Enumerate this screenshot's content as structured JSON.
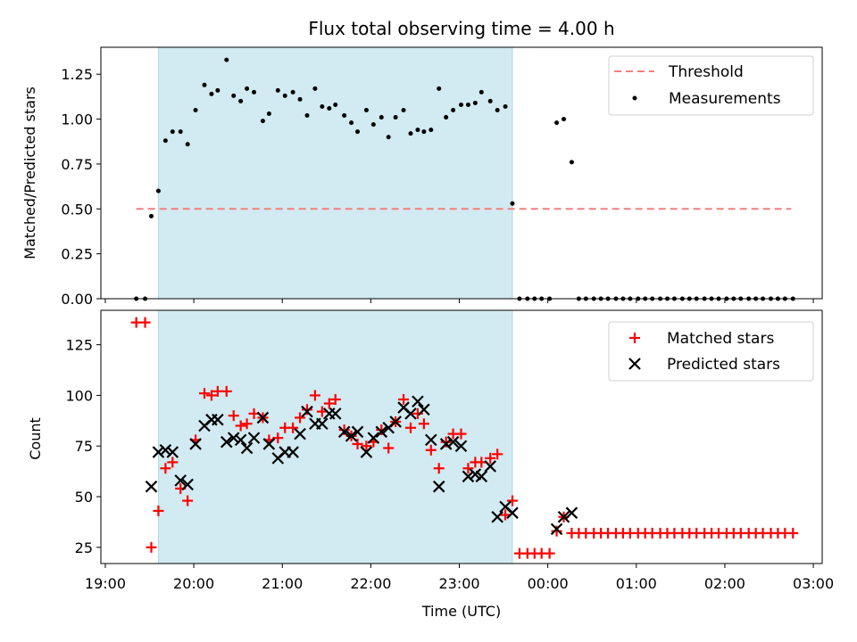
{
  "colors": {
    "shade": "#add8e6",
    "threshold": "#f08080",
    "matched": "#ff0000",
    "predicted": "#000000",
    "measurements": "#000000"
  },
  "chart_data": [
    {
      "type": "scatter",
      "title": "Flux total observing time = 4.00 h",
      "ylabel": "Matched/Predicted stars",
      "xlim": [
        18.95,
        27.1
      ],
      "ylim": [
        0,
        1.4
      ],
      "yticks": [
        0.0,
        0.25,
        0.5,
        0.75,
        1.0,
        1.25
      ],
      "ytick_labels": [
        "0.00",
        "0.25",
        "0.50",
        "0.75",
        "1.00",
        "1.25"
      ],
      "shaded_span": [
        19.6,
        23.6
      ],
      "legend_position": "top-right",
      "threshold": {
        "name": "Threshold",
        "x": [
          19.35,
          26.75
        ],
        "y": 0.5
      },
      "series": [
        {
          "name": "Measurements",
          "x": [
            19.35,
            19.45,
            19.52,
            19.6,
            19.68,
            19.76,
            19.85,
            19.93,
            20.02,
            20.12,
            20.2,
            20.27,
            20.37,
            20.45,
            20.53,
            20.6,
            20.68,
            20.78,
            20.85,
            20.95,
            21.03,
            21.12,
            21.2,
            21.28,
            21.37,
            21.45,
            21.53,
            21.6,
            21.7,
            21.78,
            21.85,
            21.95,
            22.03,
            22.12,
            22.2,
            22.28,
            22.37,
            22.45,
            22.53,
            22.6,
            22.68,
            22.77,
            22.85,
            22.93,
            23.02,
            23.1,
            23.18,
            23.25,
            23.35,
            23.43,
            23.52,
            23.6,
            23.68,
            23.77,
            23.85,
            23.93,
            24.02,
            24.1,
            24.18,
            24.27,
            24.35,
            24.43,
            24.52,
            24.6,
            24.68,
            24.77,
            24.85,
            24.93,
            25.02,
            25.1,
            25.18,
            25.27,
            25.35,
            25.43,
            25.52,
            25.6,
            25.68,
            25.77,
            25.85,
            25.93,
            26.02,
            26.1,
            26.18,
            26.27,
            26.35,
            26.43,
            26.52,
            26.6,
            26.68,
            26.77
          ],
          "y": [
            0.0,
            0.0,
            0.46,
            0.6,
            0.88,
            0.93,
            0.93,
            0.86,
            1.05,
            1.19,
            1.14,
            1.16,
            1.33,
            1.13,
            1.1,
            1.17,
            1.15,
            0.99,
            1.03,
            1.16,
            1.13,
            1.15,
            1.11,
            1.02,
            1.17,
            1.07,
            1.06,
            1.08,
            1.02,
            0.98,
            0.93,
            1.05,
            0.97,
            1.01,
            0.9,
            1.01,
            1.05,
            0.92,
            0.94,
            0.93,
            0.94,
            1.17,
            1.01,
            1.05,
            1.08,
            1.08,
            1.09,
            1.15,
            1.1,
            1.05,
            1.07,
            0.53,
            0.0,
            0.0,
            0.0,
            0.0,
            0.0,
            0.98,
            1.0,
            0.76,
            0.0,
            0.0,
            0.0,
            0.0,
            0.0,
            0.0,
            0.0,
            0.0,
            0.0,
            0.0,
            0.0,
            0.0,
            0.0,
            0.0,
            0.0,
            0.0,
            0.0,
            0.0,
            0.0,
            0.0,
            0.0,
            0.0,
            0.0,
            0.0,
            0.0,
            0.0,
            0.0,
            0.0,
            0.0,
            0.0
          ]
        }
      ]
    },
    {
      "type": "scatter",
      "xlabel": "Time (UTC)",
      "ylabel": "Count",
      "xlim": [
        18.95,
        27.1
      ],
      "ylim": [
        17,
        142
      ],
      "yticks": [
        25,
        50,
        75,
        100,
        125
      ],
      "ytick_labels": [
        "25",
        "50",
        "75",
        "100",
        "125"
      ],
      "xticks": [
        19,
        20,
        21,
        22,
        23,
        24,
        25,
        26,
        27
      ],
      "xtick_labels": [
        "19:00",
        "20:00",
        "21:00",
        "22:00",
        "23:00",
        "00:00",
        "01:00",
        "02:00",
        "03:00"
      ],
      "shaded_span": [
        19.6,
        23.6
      ],
      "legend_position": "top-right",
      "series": [
        {
          "name": "Matched stars",
          "marker": "plus",
          "x": [
            19.35,
            19.45,
            19.52,
            19.6,
            19.68,
            19.76,
            19.85,
            19.93,
            20.02,
            20.12,
            20.2,
            20.27,
            20.37,
            20.45,
            20.53,
            20.6,
            20.68,
            20.78,
            20.85,
            20.95,
            21.03,
            21.12,
            21.2,
            21.28,
            21.37,
            21.45,
            21.53,
            21.6,
            21.7,
            21.78,
            21.85,
            21.95,
            22.03,
            22.12,
            22.2,
            22.28,
            22.37,
            22.45,
            22.53,
            22.6,
            22.68,
            22.77,
            22.85,
            22.93,
            23.02,
            23.1,
            23.18,
            23.25,
            23.35,
            23.43,
            23.52,
            23.6,
            23.68,
            23.77,
            23.85,
            23.93,
            24.02,
            24.1,
            24.18,
            24.27,
            24.35,
            24.43,
            24.52,
            24.6,
            24.68,
            24.77,
            24.85,
            24.93,
            25.02,
            25.1,
            25.18,
            25.27,
            25.35,
            25.43,
            25.52,
            25.6,
            25.68,
            25.77,
            25.85,
            25.93,
            26.02,
            26.1,
            26.18,
            26.27,
            26.35,
            26.43,
            26.52,
            26.6,
            26.68,
            26.77
          ],
          "y": [
            136,
            136,
            25,
            43,
            64,
            67,
            54,
            48,
            78,
            101,
            100,
            102,
            102,
            90,
            85,
            86,
            91,
            89,
            78,
            79,
            84,
            84,
            89,
            93,
            100,
            92,
            96,
            98,
            83,
            80,
            76,
            75,
            77,
            83,
            74,
            87,
            98,
            84,
            91,
            86,
            73,
            64,
            77,
            81,
            81,
            64,
            67,
            67,
            69,
            71,
            41,
            48,
            22,
            22,
            22,
            22,
            22,
            33,
            40,
            32,
            32,
            32,
            32,
            32,
            32,
            32,
            32,
            32,
            32,
            32,
            32,
            32,
            32,
            32,
            32,
            32,
            32,
            32,
            32,
            32,
            32,
            32,
            32,
            32,
            32,
            32,
            32,
            32,
            32,
            32
          ]
        },
        {
          "name": "Predicted stars",
          "marker": "x",
          "x": [
            19.52,
            19.6,
            19.68,
            19.76,
            19.85,
            19.93,
            20.02,
            20.12,
            20.2,
            20.27,
            20.37,
            20.45,
            20.53,
            20.6,
            20.68,
            20.78,
            20.85,
            20.95,
            21.03,
            21.12,
            21.2,
            21.28,
            21.37,
            21.45,
            21.53,
            21.6,
            21.7,
            21.78,
            21.85,
            21.95,
            22.03,
            22.12,
            22.2,
            22.28,
            22.37,
            22.45,
            22.53,
            22.6,
            22.68,
            22.77,
            22.85,
            22.93,
            23.02,
            23.1,
            23.18,
            23.25,
            23.35,
            23.43,
            23.52,
            23.6,
            24.1,
            24.18,
            24.27
          ],
          "y": [
            55,
            72,
            73,
            72,
            58,
            56,
            76,
            85,
            88,
            88,
            77,
            79,
            78,
            74,
            79,
            89,
            76,
            69,
            72,
            72,
            81,
            92,
            86,
            86,
            91,
            91,
            82,
            80,
            82,
            72,
            79,
            82,
            84,
            87,
            94,
            91,
            97,
            93,
            78,
            55,
            76,
            77,
            75,
            60,
            61,
            60,
            65,
            40,
            45,
            42,
            34,
            40,
            42
          ]
        }
      ]
    }
  ]
}
